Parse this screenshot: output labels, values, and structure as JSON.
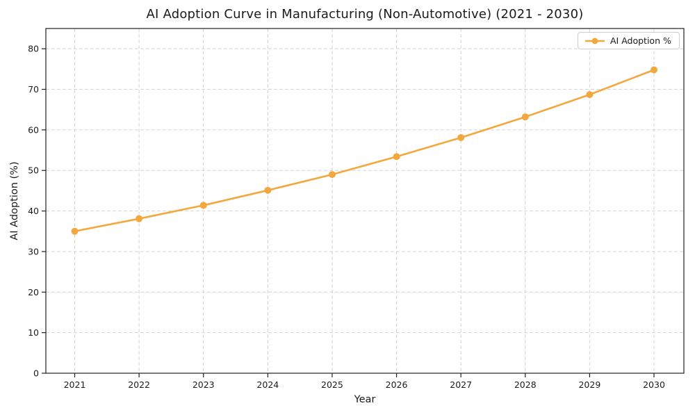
{
  "figure": {
    "title": "AI Adoption Curve in Manufacturing (Non-Automotive) (2021 - 2030)",
    "xlabel": "Year",
    "ylabel": "AI Adoption (%)",
    "legend_label": "AI Adoption %"
  },
  "chart_data": {
    "type": "line",
    "title": "AI Adoption Curve in Manufacturing (Non-Automotive) (2021 - 2030)",
    "xlabel": "Year",
    "ylabel": "AI Adoption (%)",
    "categories": [
      "2021",
      "2022",
      "2023",
      "2024",
      "2025",
      "2026",
      "2027",
      "2028",
      "2029",
      "2030"
    ],
    "series": [
      {
        "name": "AI Adoption %",
        "values": [
          35.0,
          38.1,
          41.4,
          45.1,
          49.0,
          53.4,
          58.1,
          63.2,
          68.7,
          74.8
        ]
      }
    ],
    "yticks": [
      0,
      10,
      20,
      30,
      40,
      50,
      60,
      70,
      80
    ],
    "ylim": [
      0,
      85
    ],
    "grid": true,
    "grid_style": "dashed",
    "legend_position": "upper right",
    "marker": "o",
    "colors": {
      "line": "#F3A83E",
      "grid": "#D4D4D4",
      "spine": "#1f1f1f",
      "tick_label": "#1a1a1a"
    }
  }
}
